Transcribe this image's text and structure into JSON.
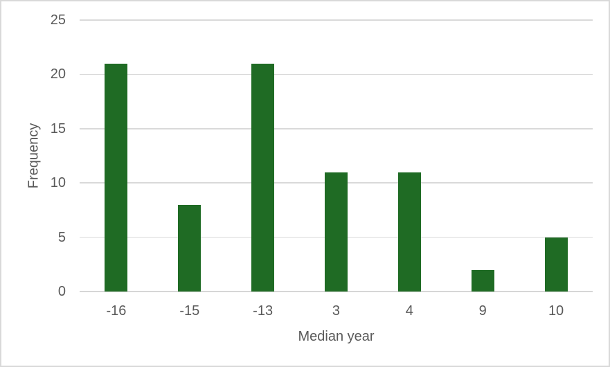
{
  "chart_data": {
    "type": "bar",
    "title": "",
    "categories": [
      "-16",
      "-15",
      "-13",
      "3",
      "4",
      "9",
      "10"
    ],
    "values": [
      21,
      8,
      21,
      11,
      11,
      2,
      5
    ],
    "xlabel": "Median year",
    "ylabel": "Frequency",
    "ylim": [
      0,
      25
    ],
    "yticks": [
      0,
      5,
      10,
      15,
      20,
      25
    ],
    "grid": "horizontal",
    "legend": "none",
    "colors": {
      "bar": "#1f6b24",
      "gridline": "#d9d9d9",
      "axis_text": "#595959",
      "background": "#ffffff",
      "frame_border": "#d9d9d9"
    }
  }
}
